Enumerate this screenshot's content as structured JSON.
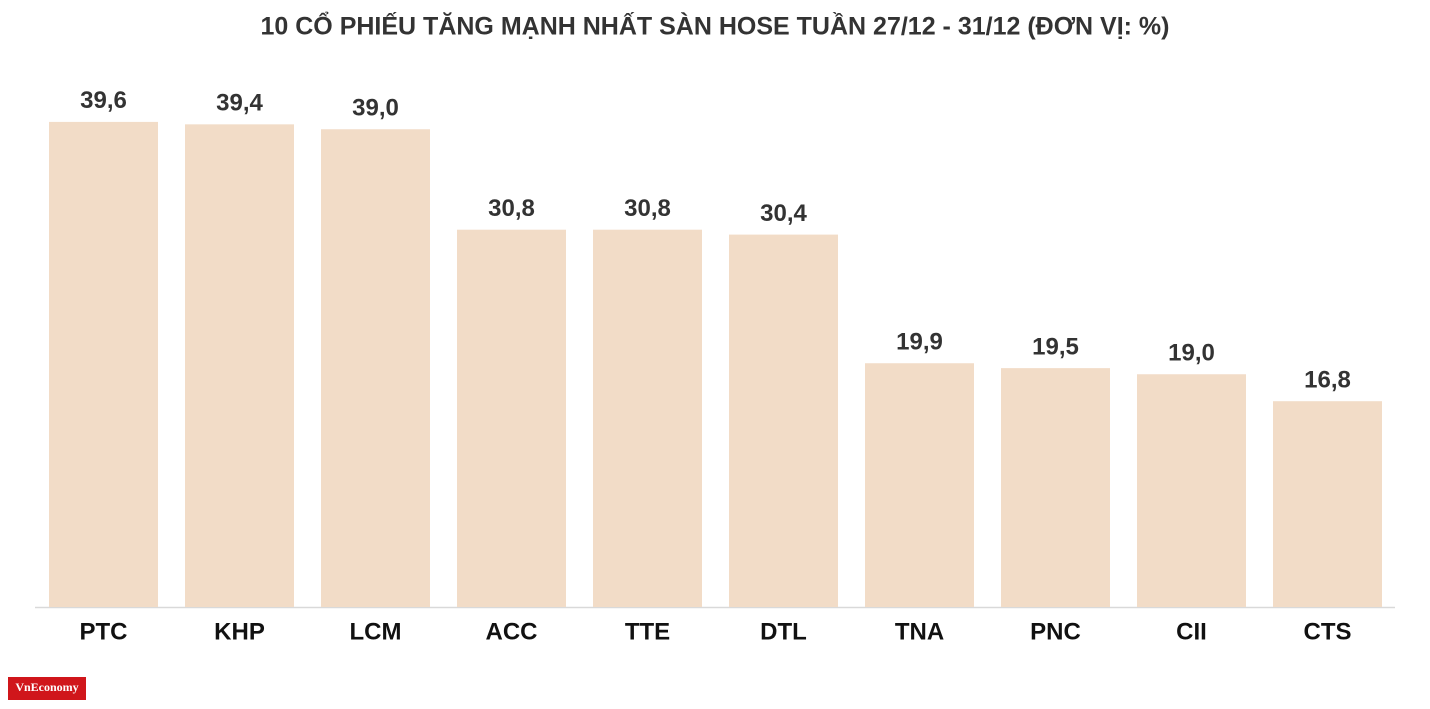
{
  "chart_data": {
    "type": "bar",
    "title": "10 CỔ PHIẾU TĂNG MẠNH NHẤT SÀN HOSE TUẦN 27/12 - 31/12 (ĐƠN VỊ: %)",
    "categories": [
      "PTC",
      "KHP",
      "LCM",
      "ACC",
      "TTE",
      "DTL",
      "TNA",
      "PNC",
      "CII",
      "CTS"
    ],
    "values": [
      39.6,
      39.4,
      39.0,
      30.8,
      30.8,
      30.4,
      19.9,
      19.5,
      19.0,
      16.8
    ],
    "value_labels": [
      "39,6",
      "39,4",
      "39,0",
      "30,8",
      "30,8",
      "30,4",
      "19,9",
      "19,5",
      "19,0",
      "16,8"
    ],
    "color": "#f2dcc7",
    "ylim": [
      0,
      40
    ]
  },
  "logo": "VnEconomy"
}
